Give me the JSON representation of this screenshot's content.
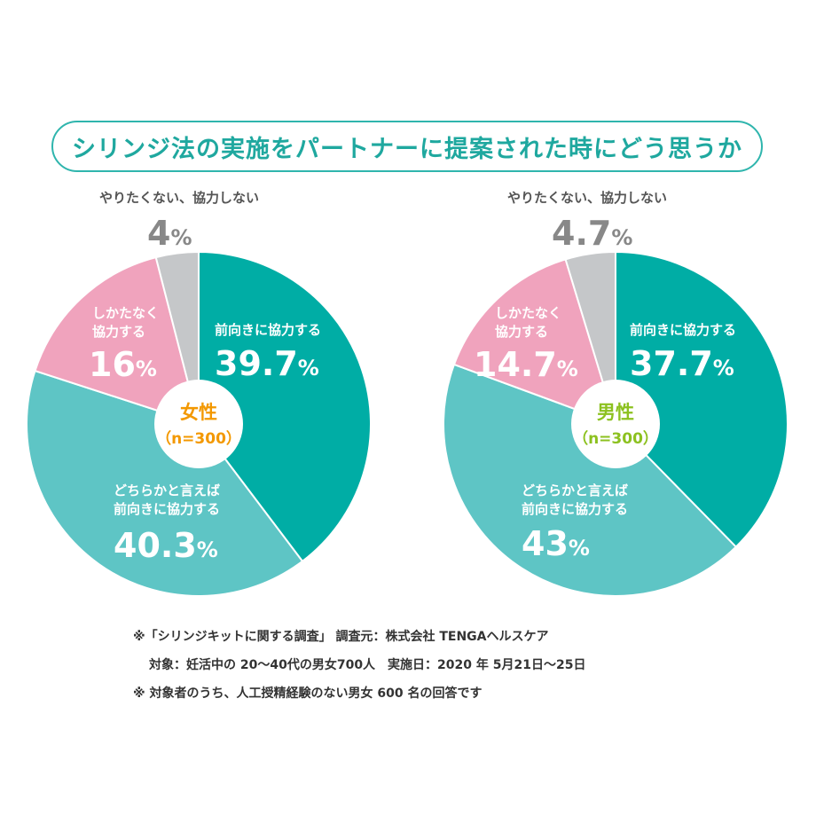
{
  "title": "シリンジ法の実施をパートナーに提案された時にどう思うか",
  "colors": {
    "teal_dark": "#00ada5",
    "teal_light": "#5ec5c5",
    "pink": "#f0a3bd",
    "gray": "#c5c7c9",
    "title_border": "#2fb5ad",
    "female_label": "#f39800",
    "male_label": "#8cc11f"
  },
  "chart_data": [
    {
      "type": "pie",
      "center_label": "女性",
      "center_sub": "（n=300）",
      "slices": [
        {
          "label": "前向きに協力する",
          "value": 39.7,
          "display": "39.7"
        },
        {
          "label": "どちらかと言えば\n前向きに協力する",
          "value": 40.3,
          "display": "40.3"
        },
        {
          "label": "しかたなく\n協力する",
          "value": 16,
          "display": "16"
        },
        {
          "label": "やりたくない、協力しない",
          "value": 4,
          "display": "4"
        }
      ],
      "unit": "%"
    },
    {
      "type": "pie",
      "center_label": "男性",
      "center_sub": "（n=300）",
      "slices": [
        {
          "label": "前向きに協力する",
          "value": 37.7,
          "display": "37.7"
        },
        {
          "label": "どちらかと言えば\n前向きに協力する",
          "value": 43,
          "display": "43"
        },
        {
          "label": "しかたなく\n協力する",
          "value": 14.7,
          "display": "14.7"
        },
        {
          "label": "やりたくない、協力しない",
          "value": 4.7,
          "display": "4.7"
        }
      ],
      "unit": "%"
    }
  ],
  "notes": [
    "※「シリンジキットに関する調査」 調査元：株式会社 TENGAヘルスケア",
    "対象：妊活中の 20～40代の男女700人　実施日：2020 年 5月21日～25日",
    "※ 対象者のうち、人工授精経験のない男女 600 名の回答です"
  ]
}
